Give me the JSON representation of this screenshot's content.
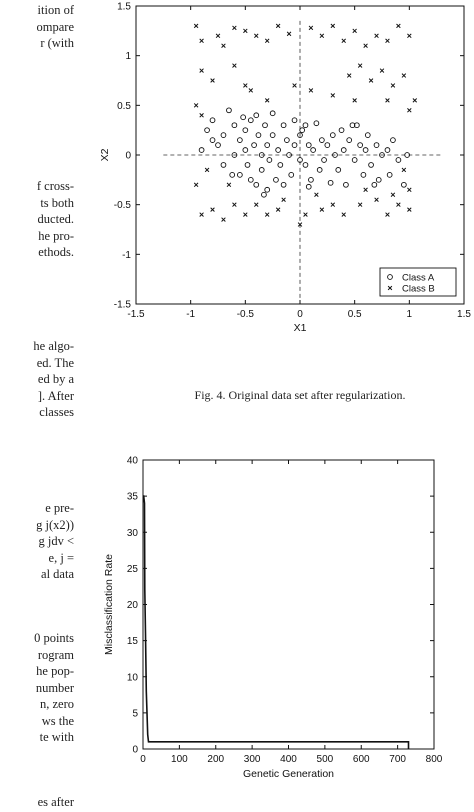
{
  "left_column": {
    "block1": [
      "ition of",
      "ompare",
      "r (with"
    ],
    "block2": [
      "f cross-",
      "ts both",
      "ducted.",
      "he pro-",
      "ethods."
    ],
    "block3": [
      "he algo-",
      "ed. The",
      "ed by a",
      "]. After",
      "classes"
    ],
    "block4": [
      "e  pre-",
      "g j(x2))",
      "g jdv <",
      "e,   j =",
      "al data"
    ],
    "block5": [
      "0 points",
      "rogram",
      "he pop-",
      "number",
      "n, zero",
      "ws the",
      "te with"
    ],
    "block6": [
      "es after"
    ]
  },
  "figure4": {
    "caption": "Fig. 4.  Original data set after regularization.",
    "chart_data": {
      "type": "scatter",
      "xlabel": "X1",
      "ylabel": "X2",
      "xlim": [
        -1.5,
        1.5
      ],
      "ylim": [
        -1.5,
        1.5
      ],
      "xticks": [
        "-1.5",
        "-1",
        "-0.5",
        "0",
        "0.5",
        "1",
        "1.5"
      ],
      "yticks": [
        "-1.5",
        "-1",
        "-0.5",
        "0",
        "0.5",
        "1",
        "1.5"
      ],
      "legend_position": "bottom-right",
      "crosshair_lines": true,
      "series": [
        {
          "name": "Class A",
          "marker": "circle",
          "points": [
            [
              -0.9,
              0.05
            ],
            [
              -0.85,
              0.25
            ],
            [
              -0.8,
              0.35
            ],
            [
              -0.75,
              0.1
            ],
            [
              -0.7,
              -0.1
            ],
            [
              -0.7,
              0.2
            ],
            [
              -0.65,
              0.45
            ],
            [
              -0.6,
              0.3
            ],
            [
              -0.6,
              0.0
            ],
            [
              -0.55,
              -0.2
            ],
            [
              -0.55,
              0.15
            ],
            [
              -0.5,
              0.25
            ],
            [
              -0.5,
              0.05
            ],
            [
              -0.48,
              -0.1
            ],
            [
              -0.45,
              -0.25
            ],
            [
              -0.45,
              0.35
            ],
            [
              -0.42,
              0.1
            ],
            [
              -0.4,
              0.4
            ],
            [
              -0.4,
              -0.3
            ],
            [
              -0.38,
              0.2
            ],
            [
              -0.35,
              0.0
            ],
            [
              -0.35,
              -0.15
            ],
            [
              -0.32,
              0.3
            ],
            [
              -0.3,
              -0.35
            ],
            [
              -0.3,
              0.1
            ],
            [
              -0.28,
              -0.05
            ],
            [
              -0.25,
              0.42
            ],
            [
              -0.25,
              0.2
            ],
            [
              -0.22,
              -0.25
            ],
            [
              -0.2,
              0.05
            ],
            [
              -0.18,
              -0.1
            ],
            [
              -0.15,
              0.3
            ],
            [
              -0.15,
              -0.3
            ],
            [
              -0.12,
              0.15
            ],
            [
              -0.1,
              0.0
            ],
            [
              -0.08,
              -0.2
            ],
            [
              -0.05,
              0.35
            ],
            [
              -0.05,
              0.1
            ],
            [
              0.0,
              0.2
            ],
            [
              0.0,
              -0.05
            ],
            [
              0.02,
              0.25
            ],
            [
              0.05,
              0.3
            ],
            [
              0.05,
              -0.1
            ],
            [
              0.08,
              0.1
            ],
            [
              0.1,
              -0.25
            ],
            [
              0.12,
              0.05
            ],
            [
              0.15,
              0.32
            ],
            [
              0.18,
              -0.15
            ],
            [
              0.2,
              0.15
            ],
            [
              0.22,
              -0.05
            ],
            [
              0.25,
              0.1
            ],
            [
              0.28,
              -0.28
            ],
            [
              0.3,
              0.2
            ],
            [
              0.32,
              0.0
            ],
            [
              0.35,
              -0.15
            ],
            [
              0.38,
              0.25
            ],
            [
              0.4,
              0.05
            ],
            [
              0.42,
              -0.3
            ],
            [
              0.45,
              0.15
            ],
            [
              0.5,
              -0.05
            ],
            [
              0.52,
              0.3
            ],
            [
              0.55,
              0.1
            ],
            [
              0.58,
              -0.2
            ],
            [
              0.6,
              0.05
            ],
            [
              0.62,
              0.2
            ],
            [
              0.65,
              -0.1
            ],
            [
              0.7,
              0.1
            ],
            [
              0.72,
              -0.25
            ],
            [
              0.75,
              0.0
            ],
            [
              0.8,
              0.05
            ],
            [
              0.82,
              -0.2
            ],
            [
              0.85,
              0.15
            ],
            [
              0.9,
              -0.05
            ],
            [
              0.95,
              -0.3
            ],
            [
              0.98,
              0.0
            ],
            [
              -0.8,
              0.15
            ],
            [
              -0.62,
              -0.2
            ],
            [
              -0.52,
              0.38
            ],
            [
              -0.33,
              -0.4
            ],
            [
              0.08,
              -0.32
            ],
            [
              0.48,
              0.3
            ],
            [
              0.68,
              -0.3
            ]
          ]
        },
        {
          "name": "Class B",
          "marker": "x",
          "points": [
            [
              -0.95,
              1.3
            ],
            [
              -0.9,
              1.15
            ],
            [
              -0.75,
              1.2
            ],
            [
              -0.7,
              1.1
            ],
            [
              -0.6,
              1.28
            ],
            [
              -0.5,
              1.25
            ],
            [
              -0.4,
              1.2
            ],
            [
              -0.3,
              1.15
            ],
            [
              -0.2,
              1.3
            ],
            [
              -0.1,
              1.22
            ],
            [
              0.1,
              1.28
            ],
            [
              0.2,
              1.2
            ],
            [
              0.3,
              1.3
            ],
            [
              0.4,
              1.15
            ],
            [
              0.5,
              1.25
            ],
            [
              0.6,
              1.1
            ],
            [
              0.7,
              1.2
            ],
            [
              0.8,
              1.15
            ],
            [
              0.9,
              1.3
            ],
            [
              1.0,
              1.2
            ],
            [
              -0.9,
              0.85
            ],
            [
              -0.8,
              0.75
            ],
            [
              -0.6,
              0.9
            ],
            [
              -0.5,
              0.7
            ],
            [
              0.45,
              0.8
            ],
            [
              0.55,
              0.9
            ],
            [
              0.65,
              0.75
            ],
            [
              0.75,
              0.85
            ],
            [
              0.85,
              0.7
            ],
            [
              0.95,
              0.8
            ],
            [
              -0.95,
              0.5
            ],
            [
              -0.9,
              0.4
            ],
            [
              1.05,
              0.55
            ],
            [
              1.0,
              0.45
            ],
            [
              -0.85,
              -0.15
            ],
            [
              -0.95,
              -0.3
            ],
            [
              0.95,
              -0.15
            ],
            [
              1.0,
              -0.35
            ],
            [
              -0.9,
              -0.6
            ],
            [
              -0.8,
              -0.55
            ],
            [
              -0.7,
              -0.65
            ],
            [
              -0.6,
              -0.5
            ],
            [
              -0.5,
              -0.6
            ],
            [
              -0.4,
              -0.5
            ],
            [
              -0.3,
              -0.6
            ],
            [
              -0.2,
              -0.55
            ],
            [
              0.0,
              -0.7
            ],
            [
              0.05,
              -0.6
            ],
            [
              0.2,
              -0.55
            ],
            [
              0.3,
              -0.5
            ],
            [
              0.4,
              -0.6
            ],
            [
              0.55,
              -0.5
            ],
            [
              0.7,
              -0.45
            ],
            [
              0.8,
              -0.6
            ],
            [
              0.9,
              -0.5
            ],
            [
              1.0,
              -0.55
            ],
            [
              -0.65,
              -0.3
            ],
            [
              0.6,
              -0.35
            ],
            [
              -0.3,
              0.55
            ],
            [
              0.3,
              0.6
            ],
            [
              -0.05,
              0.7
            ],
            [
              0.1,
              0.65
            ],
            [
              -0.45,
              0.65
            ],
            [
              0.5,
              0.55
            ],
            [
              0.8,
              0.55
            ],
            [
              0.85,
              -0.4
            ],
            [
              -0.15,
              -0.45
            ],
            [
              0.15,
              -0.4
            ]
          ]
        }
      ]
    }
  },
  "figure5": {
    "chart_data": {
      "type": "line",
      "xlabel": "Genetic Generation",
      "ylabel": "Misclassification Rate",
      "xlim": [
        0,
        800
      ],
      "ylim": [
        0,
        40
      ],
      "xticks": [
        "0",
        "100",
        "200",
        "300",
        "400",
        "500",
        "600",
        "700",
        "800"
      ],
      "yticks": [
        "0",
        "5",
        "10",
        "15",
        "20",
        "25",
        "30",
        "35",
        "40"
      ],
      "series": [
        {
          "x": [
            0,
            1,
            2,
            4,
            5,
            7,
            9,
            11,
            13,
            15,
            730,
            730
          ],
          "y": [
            35,
            35,
            35,
            34,
            22,
            16,
            8,
            5,
            2,
            1,
            1,
            0
          ]
        }
      ]
    }
  }
}
